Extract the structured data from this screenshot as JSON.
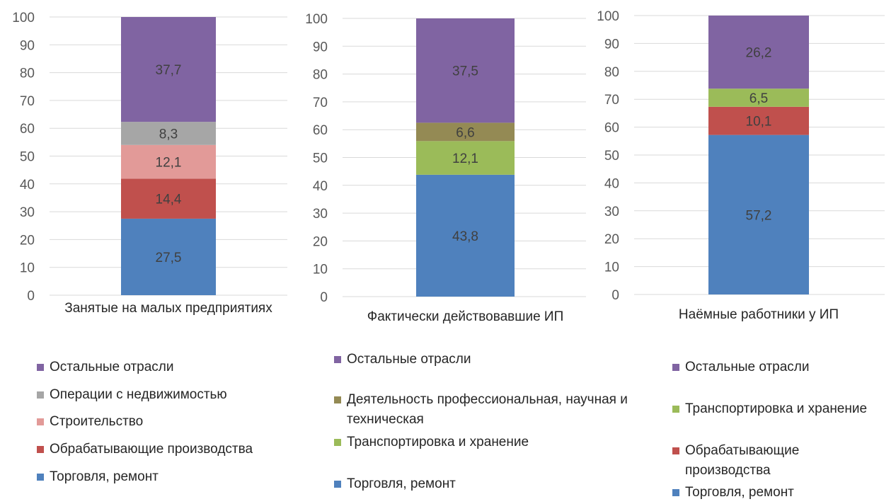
{
  "colors": {
    "trade": "#4F81BD",
    "manufacturing": "#C0504D",
    "construction": "#E29A98",
    "realestate": "#A6A6A6",
    "professional": "#948A54",
    "transport": "#9BBB59",
    "other": "#8064A2"
  },
  "chart_data": [
    {
      "type": "bar",
      "stacked": true,
      "categories": [
        "Занятые на малых предприятиях"
      ],
      "ylim": [
        0,
        100
      ],
      "yticks": [
        0,
        10,
        20,
        30,
        40,
        50,
        60,
        70,
        80,
        90,
        100
      ],
      "grid": true,
      "legend_position": "bottom",
      "series": [
        {
          "name": "Торговля, ремонт",
          "values": [
            27.5
          ],
          "label": "27,5",
          "color": "#4F81BD"
        },
        {
          "name": "Обрабатывающие производства",
          "values": [
            14.4
          ],
          "label": "14,4",
          "color": "#C0504D"
        },
        {
          "name": "Строительство",
          "values": [
            12.1
          ],
          "label": "12,1",
          "color": "#E29A98"
        },
        {
          "name": "Операции с недвижимостью",
          "values": [
            8.3
          ],
          "label": "8,3",
          "color": "#A6A6A6"
        },
        {
          "name": "Остальные отрасли",
          "values": [
            37.7
          ],
          "label": "37,7",
          "color": "#8064A2"
        }
      ]
    },
    {
      "type": "bar",
      "stacked": true,
      "categories": [
        "Фактически действовавшие ИП"
      ],
      "ylim": [
        0,
        100
      ],
      "yticks": [
        0,
        10,
        20,
        30,
        40,
        50,
        60,
        70,
        80,
        90,
        100
      ],
      "grid": true,
      "legend_position": "bottom",
      "series": [
        {
          "name": "Торговля, ремонт",
          "values": [
            43.8
          ],
          "label": "43,8",
          "color": "#4F81BD"
        },
        {
          "name": "Транспортировка и хранение",
          "values": [
            12.1
          ],
          "label": "12,1",
          "color": "#9BBB59"
        },
        {
          "name": "Деятельность профессиональная, научная и техническая",
          "values": [
            6.6
          ],
          "label": "6,6",
          "color": "#948A54"
        },
        {
          "name": "Остальные отрасли",
          "values": [
            37.5
          ],
          "label": "37,5",
          "color": "#8064A2"
        }
      ]
    },
    {
      "type": "bar",
      "stacked": true,
      "categories": [
        "Наёмные работники у ИП"
      ],
      "ylim": [
        0,
        100
      ],
      "yticks": [
        0,
        10,
        20,
        30,
        40,
        50,
        60,
        70,
        80,
        90,
        100
      ],
      "grid": true,
      "legend_position": "bottom",
      "series": [
        {
          "name": "Торговля, ремонт",
          "values": [
            57.2
          ],
          "label": "57,2",
          "color": "#4F81BD"
        },
        {
          "name": "Обрабатывающие производства",
          "values": [
            10.1
          ],
          "label": "10,1",
          "color": "#C0504D"
        },
        {
          "name": "Транспортировка и хранение",
          "values": [
            6.5
          ],
          "label": "6,5",
          "color": "#9BBB59"
        },
        {
          "name": "Остальные отрасли",
          "values": [
            26.2
          ],
          "label": "26,2",
          "color": "#8064A2"
        }
      ]
    }
  ],
  "legends": [
    {
      "items": [
        {
          "label": "Остальные отрасли",
          "color": "#8064A2"
        },
        {
          "label": "Операции с недвижимостью",
          "color": "#A6A6A6"
        },
        {
          "label": "Строительство",
          "color": "#E29A98"
        },
        {
          "label": "Обрабатывающие производства",
          "color": "#C0504D"
        },
        {
          "label": "Торговля, ремонт",
          "color": "#4F81BD"
        }
      ]
    },
    {
      "items": [
        {
          "label": "Остальные отрасли",
          "color": "#8064A2"
        },
        {
          "label": "Деятельность профессиональная, научная и техническая",
          "color": "#948A54"
        },
        {
          "label": "Транспортировка и хранение",
          "color": "#9BBB59"
        },
        {
          "label": "Торговля, ремонт",
          "color": "#4F81BD"
        }
      ]
    },
    {
      "items": [
        {
          "label": "Остальные отрасли",
          "color": "#8064A2"
        },
        {
          "label": "Транспортировка и хранение",
          "color": "#9BBB59"
        },
        {
          "label": "Обрабатывающие производства",
          "color": "#C0504D"
        },
        {
          "label": "Торговля, ремонт",
          "color": "#4F81BD"
        }
      ]
    }
  ]
}
